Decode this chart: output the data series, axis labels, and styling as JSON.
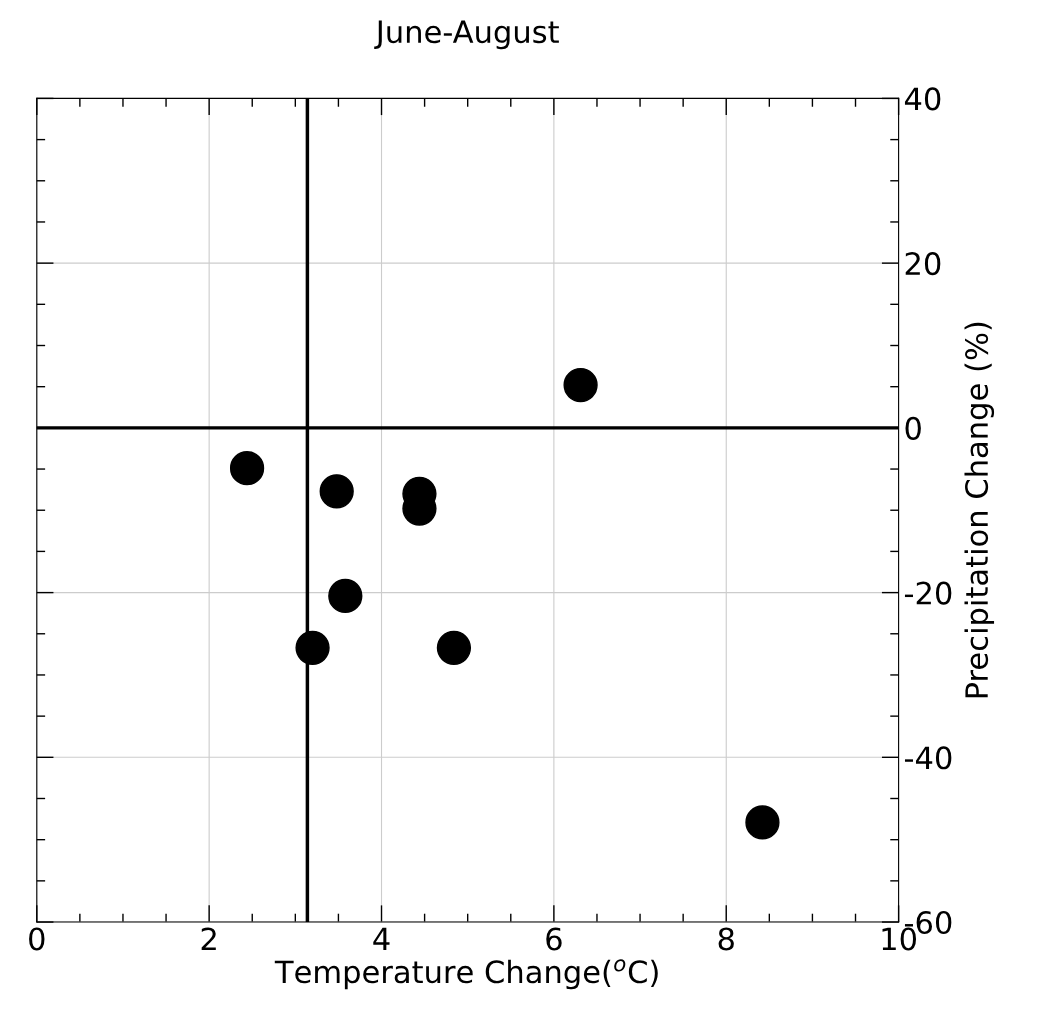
{
  "chart_data": {
    "type": "scatter",
    "title": "June-August",
    "xlabel": "Temperature Change($^{o}$C)",
    "ylabel": "Precipitation Change (%)",
    "x": [
      2.44,
      3.48,
      4.44,
      4.44,
      3.58,
      3.2,
      4.84,
      6.31,
      8.42
    ],
    "series": [
      {
        "color": "#000000",
        "values": [
          -4.9,
          -7.7,
          -8.0,
          -9.8,
          -20.4,
          -26.7,
          -26.7,
          5.2,
          -47.9
        ]
      }
    ],
    "xlim": [
      0,
      10
    ],
    "xticks": [
      0,
      2,
      4,
      6,
      8,
      10
    ],
    "ylim": [
      -60,
      40
    ],
    "yticks": [
      -60,
      -40,
      -20,
      0,
      20,
      40
    ],
    "ref_lines": [
      {
        "axis": "x",
        "value": 3.14,
        "color": "#000000"
      },
      {
        "axis": "y",
        "value": 0,
        "color": "#000000"
      }
    ],
    "grid": true,
    "marker": "circle",
    "legend": false
  }
}
